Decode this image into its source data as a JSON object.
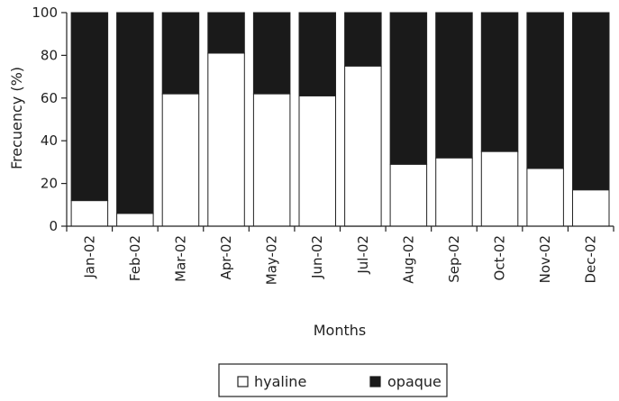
{
  "chart_data": {
    "type": "bar",
    "stacked": true,
    "percent": true,
    "categories": [
      "Jan-02",
      "Feb-02",
      "Mar-02",
      "Apr-02",
      "May-02",
      "Jun-02",
      "Jul-02",
      "Aug-02",
      "Sep-02",
      "Oct-02",
      "Nov-02",
      "Dec-02"
    ],
    "series": [
      {
        "name": "hyaline",
        "color": "#ffffff",
        "values": [
          12,
          6,
          62,
          81,
          62,
          61,
          75,
          29,
          32,
          35,
          27,
          17
        ]
      },
      {
        "name": "opaque",
        "color": "#1a1a1a",
        "values": [
          88,
          94,
          38,
          19,
          38,
          39,
          25,
          71,
          68,
          65,
          73,
          83
        ]
      }
    ],
    "xlabel": "Months",
    "ylabel": "Frecuency (%)",
    "ylim": [
      0,
      100
    ],
    "yticks": [
      0,
      20,
      40,
      60,
      80,
      100
    ],
    "grid": false,
    "legend_position": "bottom"
  }
}
